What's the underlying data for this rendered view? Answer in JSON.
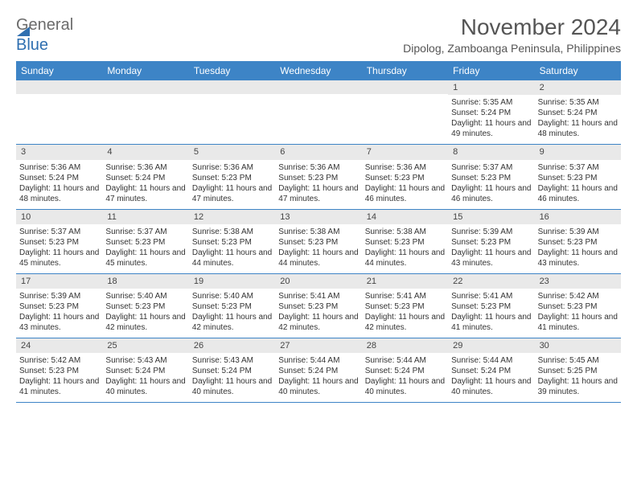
{
  "logo": {
    "part1": "General",
    "part2": "Blue"
  },
  "header": {
    "month_title": "November 2024",
    "location": "Dipolog, Zamboanga Peninsula, Philippines"
  },
  "colors": {
    "header_bar": "#3d84c6",
    "date_strip": "#e9e9e9",
    "logo_blue": "#2f6fb0",
    "logo_gray": "#6b6b6b",
    "text": "#333333",
    "rule": "#3d84c6"
  },
  "day_names": [
    "Sunday",
    "Monday",
    "Tuesday",
    "Wednesday",
    "Thursday",
    "Friday",
    "Saturday"
  ],
  "weeks": [
    [
      {
        "date": "",
        "sunrise": "",
        "sunset": "",
        "daylight": ""
      },
      {
        "date": "",
        "sunrise": "",
        "sunset": "",
        "daylight": ""
      },
      {
        "date": "",
        "sunrise": "",
        "sunset": "",
        "daylight": ""
      },
      {
        "date": "",
        "sunrise": "",
        "sunset": "",
        "daylight": ""
      },
      {
        "date": "",
        "sunrise": "",
        "sunset": "",
        "daylight": ""
      },
      {
        "date": "1",
        "sunrise": "Sunrise: 5:35 AM",
        "sunset": "Sunset: 5:24 PM",
        "daylight": "Daylight: 11 hours and 49 minutes."
      },
      {
        "date": "2",
        "sunrise": "Sunrise: 5:35 AM",
        "sunset": "Sunset: 5:24 PM",
        "daylight": "Daylight: 11 hours and 48 minutes."
      }
    ],
    [
      {
        "date": "3",
        "sunrise": "Sunrise: 5:36 AM",
        "sunset": "Sunset: 5:24 PM",
        "daylight": "Daylight: 11 hours and 48 minutes."
      },
      {
        "date": "4",
        "sunrise": "Sunrise: 5:36 AM",
        "sunset": "Sunset: 5:24 PM",
        "daylight": "Daylight: 11 hours and 47 minutes."
      },
      {
        "date": "5",
        "sunrise": "Sunrise: 5:36 AM",
        "sunset": "Sunset: 5:23 PM",
        "daylight": "Daylight: 11 hours and 47 minutes."
      },
      {
        "date": "6",
        "sunrise": "Sunrise: 5:36 AM",
        "sunset": "Sunset: 5:23 PM",
        "daylight": "Daylight: 11 hours and 47 minutes."
      },
      {
        "date": "7",
        "sunrise": "Sunrise: 5:36 AM",
        "sunset": "Sunset: 5:23 PM",
        "daylight": "Daylight: 11 hours and 46 minutes."
      },
      {
        "date": "8",
        "sunrise": "Sunrise: 5:37 AM",
        "sunset": "Sunset: 5:23 PM",
        "daylight": "Daylight: 11 hours and 46 minutes."
      },
      {
        "date": "9",
        "sunrise": "Sunrise: 5:37 AM",
        "sunset": "Sunset: 5:23 PM",
        "daylight": "Daylight: 11 hours and 46 minutes."
      }
    ],
    [
      {
        "date": "10",
        "sunrise": "Sunrise: 5:37 AM",
        "sunset": "Sunset: 5:23 PM",
        "daylight": "Daylight: 11 hours and 45 minutes."
      },
      {
        "date": "11",
        "sunrise": "Sunrise: 5:37 AM",
        "sunset": "Sunset: 5:23 PM",
        "daylight": "Daylight: 11 hours and 45 minutes."
      },
      {
        "date": "12",
        "sunrise": "Sunrise: 5:38 AM",
        "sunset": "Sunset: 5:23 PM",
        "daylight": "Daylight: 11 hours and 44 minutes."
      },
      {
        "date": "13",
        "sunrise": "Sunrise: 5:38 AM",
        "sunset": "Sunset: 5:23 PM",
        "daylight": "Daylight: 11 hours and 44 minutes."
      },
      {
        "date": "14",
        "sunrise": "Sunrise: 5:38 AM",
        "sunset": "Sunset: 5:23 PM",
        "daylight": "Daylight: 11 hours and 44 minutes."
      },
      {
        "date": "15",
        "sunrise": "Sunrise: 5:39 AM",
        "sunset": "Sunset: 5:23 PM",
        "daylight": "Daylight: 11 hours and 43 minutes."
      },
      {
        "date": "16",
        "sunrise": "Sunrise: 5:39 AM",
        "sunset": "Sunset: 5:23 PM",
        "daylight": "Daylight: 11 hours and 43 minutes."
      }
    ],
    [
      {
        "date": "17",
        "sunrise": "Sunrise: 5:39 AM",
        "sunset": "Sunset: 5:23 PM",
        "daylight": "Daylight: 11 hours and 43 minutes."
      },
      {
        "date": "18",
        "sunrise": "Sunrise: 5:40 AM",
        "sunset": "Sunset: 5:23 PM",
        "daylight": "Daylight: 11 hours and 42 minutes."
      },
      {
        "date": "19",
        "sunrise": "Sunrise: 5:40 AM",
        "sunset": "Sunset: 5:23 PM",
        "daylight": "Daylight: 11 hours and 42 minutes."
      },
      {
        "date": "20",
        "sunrise": "Sunrise: 5:41 AM",
        "sunset": "Sunset: 5:23 PM",
        "daylight": "Daylight: 11 hours and 42 minutes."
      },
      {
        "date": "21",
        "sunrise": "Sunrise: 5:41 AM",
        "sunset": "Sunset: 5:23 PM",
        "daylight": "Daylight: 11 hours and 42 minutes."
      },
      {
        "date": "22",
        "sunrise": "Sunrise: 5:41 AM",
        "sunset": "Sunset: 5:23 PM",
        "daylight": "Daylight: 11 hours and 41 minutes."
      },
      {
        "date": "23",
        "sunrise": "Sunrise: 5:42 AM",
        "sunset": "Sunset: 5:23 PM",
        "daylight": "Daylight: 11 hours and 41 minutes."
      }
    ],
    [
      {
        "date": "24",
        "sunrise": "Sunrise: 5:42 AM",
        "sunset": "Sunset: 5:23 PM",
        "daylight": "Daylight: 11 hours and 41 minutes."
      },
      {
        "date": "25",
        "sunrise": "Sunrise: 5:43 AM",
        "sunset": "Sunset: 5:24 PM",
        "daylight": "Daylight: 11 hours and 40 minutes."
      },
      {
        "date": "26",
        "sunrise": "Sunrise: 5:43 AM",
        "sunset": "Sunset: 5:24 PM",
        "daylight": "Daylight: 11 hours and 40 minutes."
      },
      {
        "date": "27",
        "sunrise": "Sunrise: 5:44 AM",
        "sunset": "Sunset: 5:24 PM",
        "daylight": "Daylight: 11 hours and 40 minutes."
      },
      {
        "date": "28",
        "sunrise": "Sunrise: 5:44 AM",
        "sunset": "Sunset: 5:24 PM",
        "daylight": "Daylight: 11 hours and 40 minutes."
      },
      {
        "date": "29",
        "sunrise": "Sunrise: 5:44 AM",
        "sunset": "Sunset: 5:24 PM",
        "daylight": "Daylight: 11 hours and 40 minutes."
      },
      {
        "date": "30",
        "sunrise": "Sunrise: 5:45 AM",
        "sunset": "Sunset: 5:25 PM",
        "daylight": "Daylight: 11 hours and 39 minutes."
      }
    ]
  ]
}
